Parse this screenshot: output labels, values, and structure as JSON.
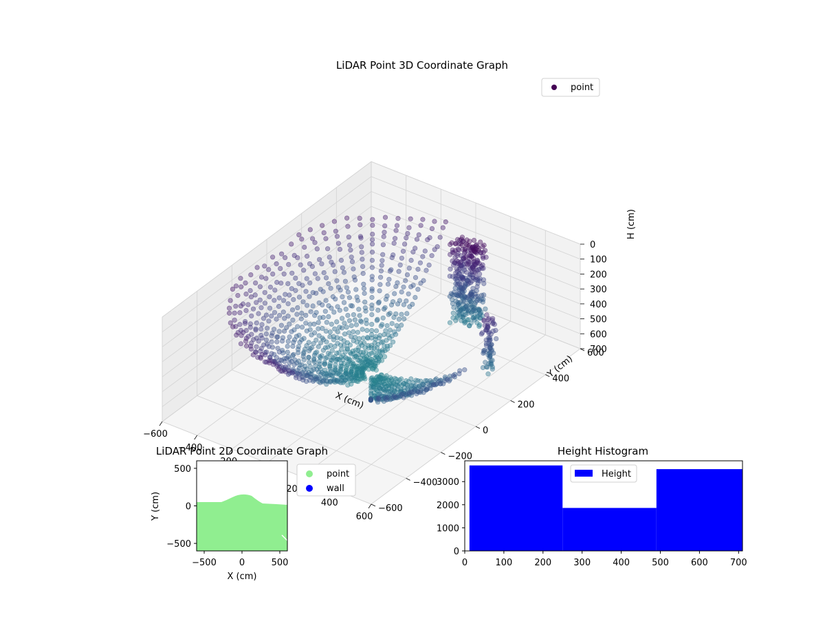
{
  "chart_data": [
    {
      "type": "scatter",
      "projection": "3d",
      "title": "LiDAR Point 3D Coordinate Graph",
      "xlabel": "X (cm)",
      "ylabel": "Y (cm)",
      "zlabel": "H (cm)",
      "xlim": [
        -600,
        600
      ],
      "ylim": [
        -600,
        600
      ],
      "zlim": [
        0,
        700
      ],
      "z_inverted": true,
      "x_ticks": [
        "−600",
        "−400",
        "−200",
        "0",
        "200",
        "400",
        "600"
      ],
      "y_ticks": [
        "−600",
        "−400",
        "−200",
        "0",
        "200",
        "400",
        "600"
      ],
      "z_ticks": [
        "0",
        "100",
        "200",
        "300",
        "400",
        "500",
        "600",
        "700"
      ],
      "colormap": "viridis",
      "legend": {
        "position": "top-right",
        "entries": [
          "point"
        ]
      },
      "series": [
        {
          "name": "point",
          "color": "#440154"
        }
      ]
    },
    {
      "type": "scatter",
      "title": "LiDAR Point 2D Coordinate Graph",
      "xlabel": "X (cm)",
      "ylabel": "Y (cm)",
      "xlim": [
        -600,
        600
      ],
      "ylim": [
        -600,
        600
      ],
      "x_ticks": [
        "−500",
        "0",
        "500"
      ],
      "y_ticks": [
        "−500",
        "0",
        "500"
      ],
      "legend": {
        "position": "outside-right",
        "entries": [
          "point",
          "wall"
        ]
      },
      "series": [
        {
          "name": "point",
          "color": "#90ee90"
        },
        {
          "name": "wall",
          "color": "#0000ff"
        }
      ]
    },
    {
      "type": "bar",
      "title": "Height Histogram",
      "xlabel": "",
      "ylabel": "",
      "xlim": [
        0,
        710
      ],
      "ylim": [
        0,
        3900
      ],
      "x_ticks": [
        "0",
        "100",
        "200",
        "300",
        "400",
        "500",
        "600",
        "700"
      ],
      "y_ticks": [
        "0",
        "1000",
        "2000",
        "3000"
      ],
      "legend": {
        "position": "top-center",
        "entries": [
          "Height"
        ]
      },
      "series": [
        {
          "name": "Height",
          "color": "#0000ff",
          "bins": [
            {
              "x0": 12,
              "x1": 250,
              "count": 3700
            },
            {
              "x0": 250,
              "x1": 490,
              "count": 1860
            },
            {
              "x0": 490,
              "x1": 710,
              "count": 3540
            }
          ]
        }
      ]
    }
  ]
}
